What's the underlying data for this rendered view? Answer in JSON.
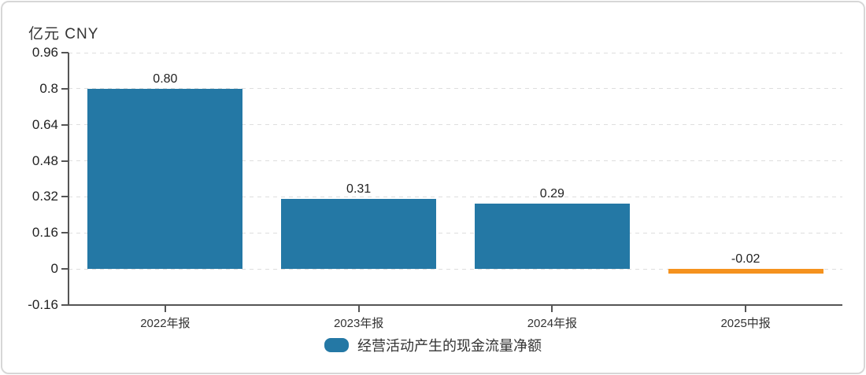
{
  "chart_data": {
    "type": "bar",
    "unit_label": "亿元  CNY",
    "categories": [
      "2022年报",
      "2023年报",
      "2024年报",
      "2025中报"
    ],
    "values": [
      0.8,
      0.31,
      0.29,
      -0.02
    ],
    "value_labels": [
      "0.80",
      "0.31",
      "0.29",
      "-0.02"
    ],
    "series": [
      {
        "name": "经营活动产生的现金流量净额",
        "values": [
          0.8,
          0.31,
          0.29,
          -0.02
        ]
      }
    ],
    "yticks": [
      0.96,
      0.8,
      0.64,
      0.48,
      0.32,
      0.16,
      0,
      -0.16
    ],
    "ytick_labels": [
      "0.96",
      "0.8",
      "0.64",
      "0.48",
      "0.32",
      "0.16",
      "0",
      "-0.16"
    ],
    "ylim": [
      -0.16,
      0.96
    ],
    "grid": "dashed-horizontal",
    "legend_position": "bottom",
    "colors": {
      "positive_bar": "#2478A5",
      "negative_bar": "#F5921E",
      "axis": "#555555",
      "gridline": "#dedede",
      "text": "#222222"
    },
    "bar_colors": [
      "#2478A5",
      "#2478A5",
      "#2478A5",
      "#F5921E"
    ],
    "legend": {
      "label": "经营活动产生的现金流量净额",
      "swatch_color": "#2478A5"
    }
  }
}
